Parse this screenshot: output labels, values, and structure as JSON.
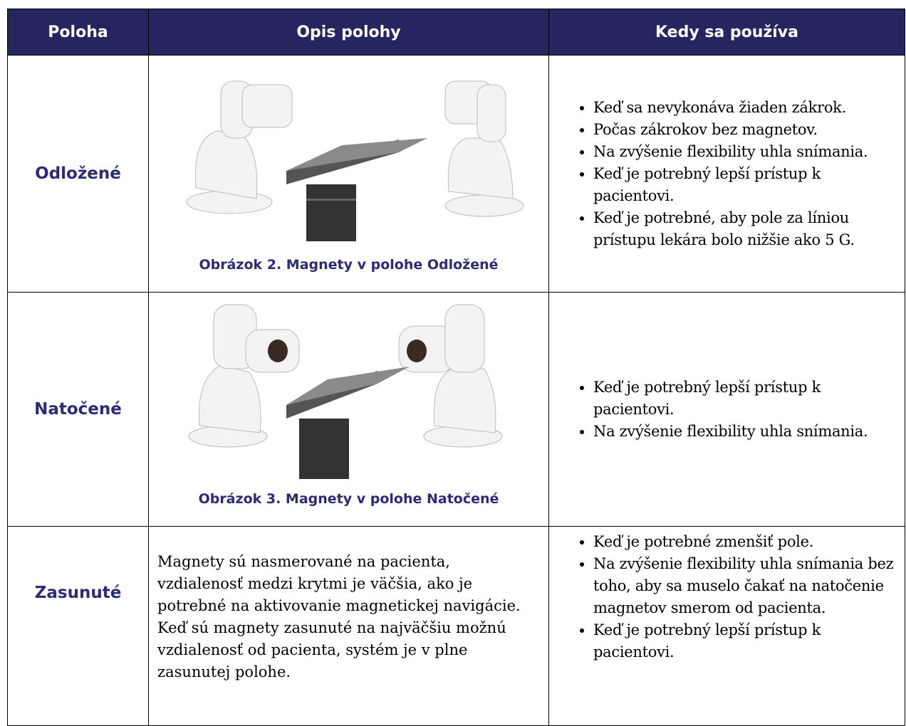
{
  "table": {
    "header": [
      "Poloha",
      "Opis polohy",
      "Kedy sa používa"
    ],
    "rows": [
      {
        "position": "Odložené",
        "caption": "Obrázok 2. Magnety v polohe Odložené",
        "uses": [
          "Keď sa nevykonáva žiaden zákrok.",
          "Počas zákrokov bez magnetov.",
          "Na zvýšenie flexibility uhla snímania.",
          "Keď je potrebný lepší prístup k pacientovi.",
          "Keď je potrebné, aby pole za líniou prístupu lekára bolo nižšie ako 5 G."
        ]
      },
      {
        "position": "Natočené",
        "caption": "Obrázok 3. Magnety v polohe Natočené",
        "uses": [
          "Keď je potrebný lepší prístup k pacientovi.",
          "Na zvýšenie flexibility uhla snímania."
        ]
      },
      {
        "position": "Zasunuté",
        "description": "Magnety sú nasmerované na pacienta, vzdialenosť medzi krytmi je väčšia, ako je potrebné na aktivovanie magnetickej navigácie. Keď sú magnety zasunuté na najväčšiu možnú vzdialenosť od pacienta, systém je v plne zasunutej polohe.",
        "uses": [
          "Keď je potrebné zmenšiť pole.",
          "Na zvýšenie flexibility uhla snímania bez toho, aby sa muselo čakať na natočenie magnetov smerom od pacienta.",
          "Keď je potrebný lepší prístup k pacientovi."
        ]
      }
    ]
  }
}
